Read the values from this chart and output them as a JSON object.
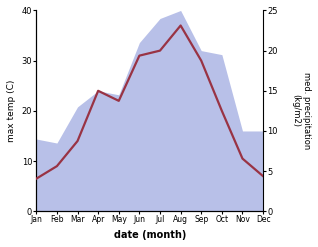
{
  "months": [
    "Jan",
    "Feb",
    "Mar",
    "Apr",
    "May",
    "Jun",
    "Jul",
    "Aug",
    "Sep",
    "Oct",
    "Nov",
    "Dec"
  ],
  "temperature": [
    6.5,
    9.0,
    14.0,
    24.0,
    22.0,
    31.0,
    32.0,
    37.0,
    30.0,
    20.0,
    10.5,
    7.0
  ],
  "precipitation": [
    9.0,
    8.5,
    13.0,
    15.0,
    14.5,
    21.0,
    24.0,
    25.0,
    20.0,
    19.5,
    10.0,
    10.0
  ],
  "temp_color": "#993344",
  "precip_fill_color": "#b8c0e8",
  "ylabel_left": "max temp (C)",
  "ylabel_right": "med. precipitation\n(kg/m2)",
  "xlabel": "date (month)",
  "ylim_left": [
    0,
    40
  ],
  "ylim_right": [
    0,
    25
  ],
  "yticks_left": [
    0,
    10,
    20,
    30,
    40
  ],
  "yticks_right": [
    0,
    5,
    10,
    15,
    20,
    25
  ],
  "bg_color": "#ffffff",
  "fig_bg_color": "#ffffff",
  "temp_linewidth": 1.6
}
